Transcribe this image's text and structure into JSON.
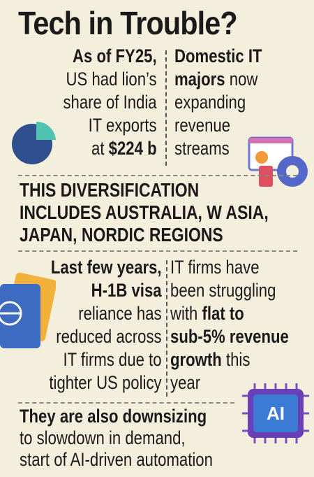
{
  "title": "Tech in Trouble?",
  "top_row": {
    "left": [
      [
        {
          "text": "As of FY25,",
          "bold": true
        }
      ],
      [
        {
          "text": "US had lion’s"
        }
      ],
      [
        {
          "text": "share of India"
        }
      ],
      [
        {
          "text": "IT exports"
        }
      ],
      [
        {
          "text": "at "
        },
        {
          "text": "$224 b",
          "bold": true
        }
      ]
    ],
    "right": [
      [
        {
          "text": "Domestic IT",
          "bold": true
        }
      ],
      [
        {
          "text": "majors",
          "bold": true
        },
        {
          "text": " now"
        }
      ],
      [
        {
          "text": "expanding"
        }
      ],
      [
        {
          "text": "revenue"
        }
      ],
      [
        {
          "text": "streams"
        }
      ]
    ]
  },
  "banner": [
    [
      {
        "text": "THIS DIVERSIFICATION",
        "bold": true
      }
    ],
    [
      {
        "text": "INCLUDES AUSTRALIA, W ASIA,",
        "bold": true
      }
    ],
    [
      {
        "text": "JAPAN, NORDIC REGIONS",
        "bold": true
      }
    ]
  ],
  "middle_row": {
    "left": [
      [
        {
          "text": "Last few years,",
          "bold": true
        }
      ],
      [
        {
          "text": "H-1B visa",
          "bold": true
        }
      ],
      [
        {
          "text": "reliance has"
        }
      ],
      [
        {
          "text": "reduced across"
        }
      ],
      [
        {
          "text": "IT firms due to"
        }
      ],
      [
        {
          "text": "tighter US policy"
        }
      ]
    ],
    "right": [
      [
        {
          "text": "IT firms have"
        }
      ],
      [
        {
          "text": "been struggling"
        }
      ],
      [
        {
          "text": "with "
        },
        {
          "text": "flat to",
          "bold": true
        }
      ],
      [
        {
          "text": "sub-5% revenue",
          "bold": true
        }
      ],
      [
        {
          "text": "growth",
          "bold": true
        },
        {
          "text": " this"
        }
      ],
      [
        {
          "text": "year"
        }
      ]
    ]
  },
  "footer": [
    [
      {
        "text": "They are also downsizing",
        "bold": true
      }
    ],
    [
      {
        "text": "to slowdown in demand,"
      }
    ],
    [
      {
        "text": "start of AI-driven automation"
      }
    ]
  ],
  "ai_icon_label": "AI"
}
